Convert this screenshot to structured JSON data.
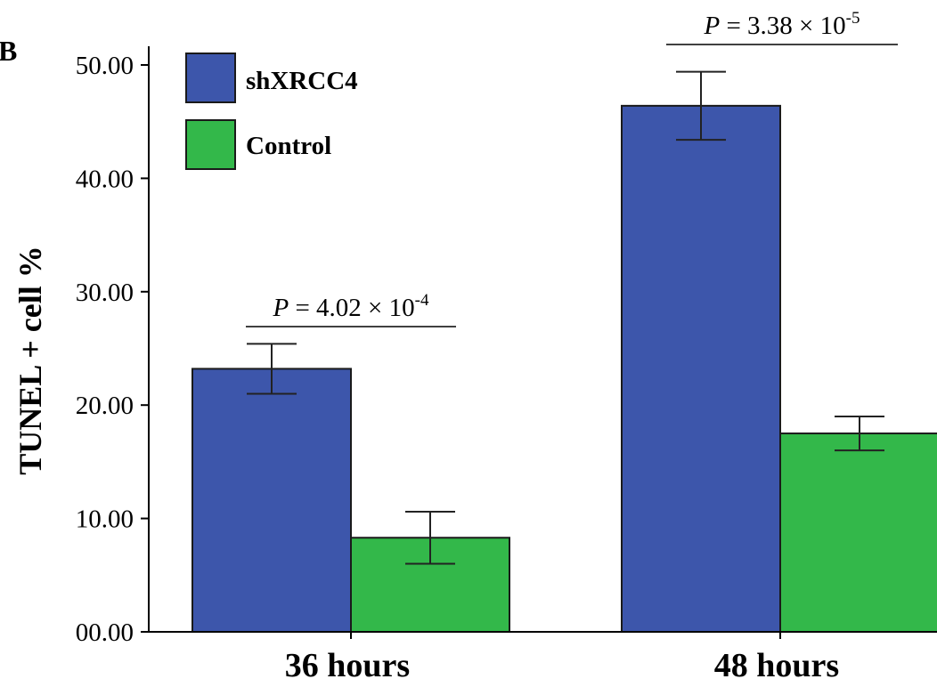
{
  "panel_label": "B",
  "chart_data": {
    "type": "bar",
    "categories": [
      "36 hours",
      "48 hours"
    ],
    "ylabel": "TUNEL + cell %",
    "xlabel": "",
    "ylim": [
      0,
      50
    ],
    "yticks": [
      0,
      10,
      20,
      30,
      40,
      50
    ],
    "ytick_labels": [
      "00.00",
      "10.00",
      "20.00",
      "30.00",
      "40.00",
      "50.00"
    ],
    "series": [
      {
        "name": "shXRCC4",
        "color": "#3d56ab",
        "values": [
          23.2,
          46.4
        ],
        "error": [
          2.2,
          3.0
        ]
      },
      {
        "name": "Control",
        "color": "#33b84a",
        "values": [
          8.3,
          17.5
        ],
        "error": [
          2.3,
          1.5
        ]
      }
    ],
    "annotations": [
      {
        "category": "36 hours",
        "italic": "P",
        "text": " = 4.02 × 10",
        "exp": "-4"
      },
      {
        "category": "48 hours",
        "italic": "P",
        "text": " = 3.38 × 10",
        "exp": "-5"
      }
    ],
    "legend_position": "top-left",
    "grid": false
  }
}
